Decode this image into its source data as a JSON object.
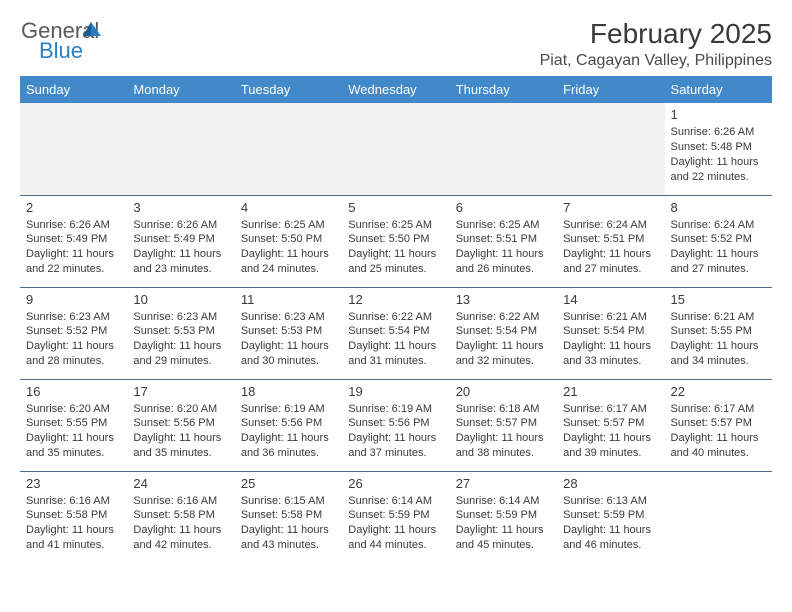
{
  "logo": {
    "word1": "General",
    "word2": "Blue"
  },
  "title": "February 2025",
  "subtitle": "Piat, Cagayan Valley, Philippines",
  "colors": {
    "header_bg": "#4189c8",
    "header_text": "#ffffff",
    "row_divider": "#4a6a8a",
    "empty_bg": "#f2f2f2",
    "text": "#3a3a3a",
    "logo_gray": "#5a5a5a",
    "logo_blue": "#2a7ec4"
  },
  "dayHeaders": [
    "Sunday",
    "Monday",
    "Tuesday",
    "Wednesday",
    "Thursday",
    "Friday",
    "Saturday"
  ],
  "weeks": [
    [
      null,
      null,
      null,
      null,
      null,
      null,
      {
        "n": "1",
        "sunrise": "6:26 AM",
        "sunset": "5:48 PM",
        "dlh": "11",
        "dlm": "22"
      }
    ],
    [
      {
        "n": "2",
        "sunrise": "6:26 AM",
        "sunset": "5:49 PM",
        "dlh": "11",
        "dlm": "22"
      },
      {
        "n": "3",
        "sunrise": "6:26 AM",
        "sunset": "5:49 PM",
        "dlh": "11",
        "dlm": "23"
      },
      {
        "n": "4",
        "sunrise": "6:25 AM",
        "sunset": "5:50 PM",
        "dlh": "11",
        "dlm": "24"
      },
      {
        "n": "5",
        "sunrise": "6:25 AM",
        "sunset": "5:50 PM",
        "dlh": "11",
        "dlm": "25"
      },
      {
        "n": "6",
        "sunrise": "6:25 AM",
        "sunset": "5:51 PM",
        "dlh": "11",
        "dlm": "26"
      },
      {
        "n": "7",
        "sunrise": "6:24 AM",
        "sunset": "5:51 PM",
        "dlh": "11",
        "dlm": "27"
      },
      {
        "n": "8",
        "sunrise": "6:24 AM",
        "sunset": "5:52 PM",
        "dlh": "11",
        "dlm": "27"
      }
    ],
    [
      {
        "n": "9",
        "sunrise": "6:23 AM",
        "sunset": "5:52 PM",
        "dlh": "11",
        "dlm": "28"
      },
      {
        "n": "10",
        "sunrise": "6:23 AM",
        "sunset": "5:53 PM",
        "dlh": "11",
        "dlm": "29"
      },
      {
        "n": "11",
        "sunrise": "6:23 AM",
        "sunset": "5:53 PM",
        "dlh": "11",
        "dlm": "30"
      },
      {
        "n": "12",
        "sunrise": "6:22 AM",
        "sunset": "5:54 PM",
        "dlh": "11",
        "dlm": "31"
      },
      {
        "n": "13",
        "sunrise": "6:22 AM",
        "sunset": "5:54 PM",
        "dlh": "11",
        "dlm": "32"
      },
      {
        "n": "14",
        "sunrise": "6:21 AM",
        "sunset": "5:54 PM",
        "dlh": "11",
        "dlm": "33"
      },
      {
        "n": "15",
        "sunrise": "6:21 AM",
        "sunset": "5:55 PM",
        "dlh": "11",
        "dlm": "34"
      }
    ],
    [
      {
        "n": "16",
        "sunrise": "6:20 AM",
        "sunset": "5:55 PM",
        "dlh": "11",
        "dlm": "35"
      },
      {
        "n": "17",
        "sunrise": "6:20 AM",
        "sunset": "5:56 PM",
        "dlh": "11",
        "dlm": "35"
      },
      {
        "n": "18",
        "sunrise": "6:19 AM",
        "sunset": "5:56 PM",
        "dlh": "11",
        "dlm": "36"
      },
      {
        "n": "19",
        "sunrise": "6:19 AM",
        "sunset": "5:56 PM",
        "dlh": "11",
        "dlm": "37"
      },
      {
        "n": "20",
        "sunrise": "6:18 AM",
        "sunset": "5:57 PM",
        "dlh": "11",
        "dlm": "38"
      },
      {
        "n": "21",
        "sunrise": "6:17 AM",
        "sunset": "5:57 PM",
        "dlh": "11",
        "dlm": "39"
      },
      {
        "n": "22",
        "sunrise": "6:17 AM",
        "sunset": "5:57 PM",
        "dlh": "11",
        "dlm": "40"
      }
    ],
    [
      {
        "n": "23",
        "sunrise": "6:16 AM",
        "sunset": "5:58 PM",
        "dlh": "11",
        "dlm": "41"
      },
      {
        "n": "24",
        "sunrise": "6:16 AM",
        "sunset": "5:58 PM",
        "dlh": "11",
        "dlm": "42"
      },
      {
        "n": "25",
        "sunrise": "6:15 AM",
        "sunset": "5:58 PM",
        "dlh": "11",
        "dlm": "43"
      },
      {
        "n": "26",
        "sunrise": "6:14 AM",
        "sunset": "5:59 PM",
        "dlh": "11",
        "dlm": "44"
      },
      {
        "n": "27",
        "sunrise": "6:14 AM",
        "sunset": "5:59 PM",
        "dlh": "11",
        "dlm": "45"
      },
      {
        "n": "28",
        "sunrise": "6:13 AM",
        "sunset": "5:59 PM",
        "dlh": "11",
        "dlm": "46"
      },
      null
    ]
  ],
  "labels": {
    "sunrise": "Sunrise: ",
    "sunset": "Sunset: ",
    "daylight1": "Daylight: ",
    "daylight2": " hours and ",
    "daylight3": " minutes."
  }
}
